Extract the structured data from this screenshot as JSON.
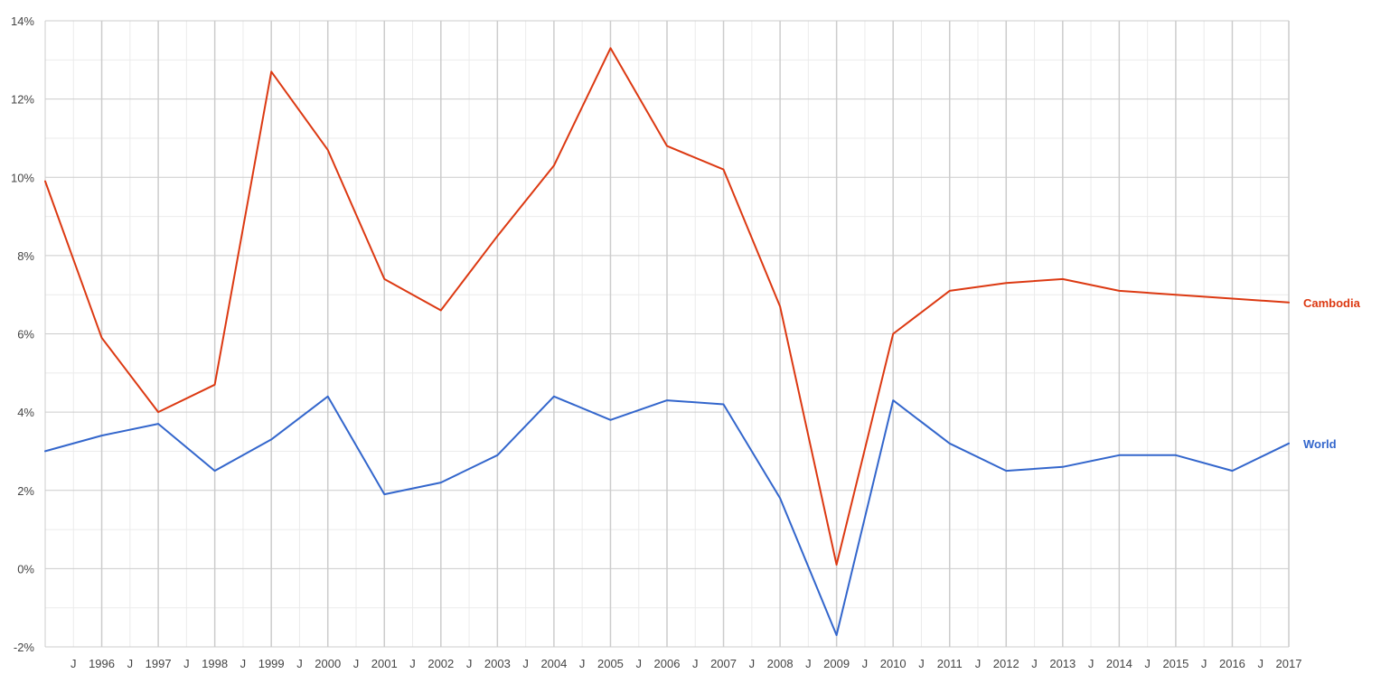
{
  "chart_data": {
    "type": "line",
    "x_ticks": [
      1996,
      1997,
      1998,
      1999,
      2000,
      2001,
      2002,
      2003,
      2004,
      2005,
      2006,
      2007,
      2008,
      2009,
      2010,
      2011,
      2012,
      2013,
      2014,
      2015,
      2016,
      2017
    ],
    "mid_tick_label": "J",
    "xlim": [
      1995,
      2017
    ],
    "ylim": [
      -2,
      14
    ],
    "y_ticks": [
      -2,
      0,
      2,
      4,
      6,
      8,
      10,
      12,
      14
    ],
    "y_tick_labels": [
      "-2%",
      "0%",
      "2%",
      "4%",
      "6%",
      "8%",
      "10%",
      "12%",
      "14%"
    ],
    "grid": true,
    "series": [
      {
        "name": "Cambodia",
        "color": "#dc3912",
        "x": [
          1995,
          1996,
          1997,
          1998,
          1999,
          2000,
          2001,
          2002,
          2003,
          2004,
          2005,
          2006,
          2007,
          2008,
          2009,
          2010,
          2011,
          2012,
          2013,
          2014,
          2015,
          2016,
          2017
        ],
        "values": [
          9.9,
          5.9,
          4.0,
          4.7,
          12.7,
          10.7,
          7.4,
          6.6,
          8.5,
          10.3,
          13.3,
          10.8,
          10.2,
          6.7,
          0.1,
          6.0,
          7.1,
          7.3,
          7.4,
          7.1,
          7.0,
          6.9,
          6.8
        ]
      },
      {
        "name": "World",
        "color": "#3366cc",
        "x": [
          1995,
          1996,
          1997,
          1998,
          1999,
          2000,
          2001,
          2002,
          2003,
          2004,
          2005,
          2006,
          2007,
          2008,
          2009,
          2010,
          2011,
          2012,
          2013,
          2014,
          2015,
          2016,
          2017
        ],
        "values": [
          3.0,
          3.4,
          3.7,
          2.5,
          3.3,
          4.4,
          1.9,
          2.2,
          2.9,
          4.4,
          3.8,
          4.3,
          4.2,
          1.8,
          -1.7,
          4.3,
          3.2,
          2.5,
          2.6,
          2.9,
          2.9,
          2.5,
          3.2
        ]
      }
    ]
  },
  "colors": {
    "grid_major": "#cccccc",
    "grid_minor": "#ebebeb",
    "tick_text": "#444444"
  }
}
